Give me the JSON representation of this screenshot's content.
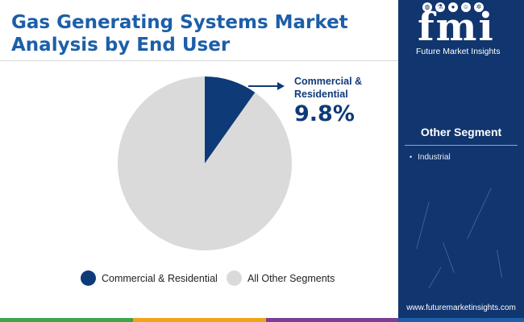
{
  "header": {
    "title": "Gas Generating Systems Market Analysis by End User"
  },
  "chart_data": {
    "type": "pie",
    "title": "Gas Generating Systems Market Analysis by End User",
    "slices": [
      {
        "label": "Commercial & Residential",
        "value": 9.8,
        "color": "#0e3a78"
      },
      {
        "label": "All Other Segments",
        "value": 90.2,
        "color": "#dadada"
      }
    ],
    "callout": {
      "label": "Commercial & Residential",
      "value_text": "9.8%"
    },
    "legend": {
      "placement": "bottom"
    }
  },
  "sidebar": {
    "logo_text": "fmi",
    "logo_subtitle": "Future Market Insights",
    "other_segment_title": "Other Segment",
    "other_segment_items": [
      "Industrial"
    ],
    "website": "www.futuremarketinsights.com"
  },
  "colors": {
    "brand_dark": "#11356e",
    "title_blue": "#1c5fa8",
    "accent_bar": [
      "#3fa548",
      "#f2a31b",
      "#7a3f93",
      "#1c5fa8"
    ]
  },
  "icons": [
    "globe-icon",
    "flask-icon",
    "drop-icon",
    "person-icon",
    "gear-icon"
  ]
}
